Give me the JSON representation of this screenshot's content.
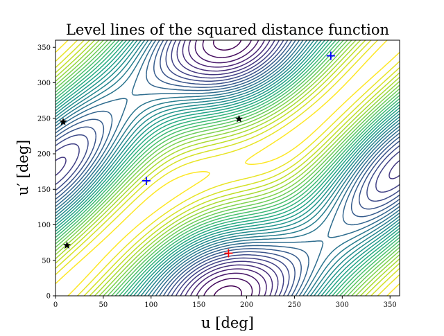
{
  "chart_data": {
    "type": "contour",
    "title": "Level lines of the squared distance function",
    "xlabel": "u [deg]",
    "ylabel": "u′ [deg]",
    "xlim": [
      0,
      360
    ],
    "ylim": [
      0,
      360
    ],
    "xticks": [
      0,
      50,
      100,
      150,
      200,
      250,
      300,
      350
    ],
    "yticks": [
      0,
      50,
      100,
      150,
      200,
      250,
      300,
      350
    ],
    "grid": false,
    "colormap": "viridis",
    "contour_levels": 32,
    "markers": [
      {
        "x": 181,
        "y": 60,
        "symbol": "plus",
        "color": "#ff0000"
      },
      {
        "x": 95,
        "y": 162,
        "symbol": "plus",
        "color": "#0000ff"
      },
      {
        "x": 288,
        "y": 338,
        "symbol": "plus",
        "color": "#0000ff"
      },
      {
        "x": 8,
        "y": 245,
        "symbol": "star",
        "color": "#000000"
      },
      {
        "x": 12,
        "y": 71,
        "symbol": "star",
        "color": "#000000"
      },
      {
        "x": 192,
        "y": 249,
        "symbol": "star",
        "color": "#000000"
      }
    ]
  }
}
